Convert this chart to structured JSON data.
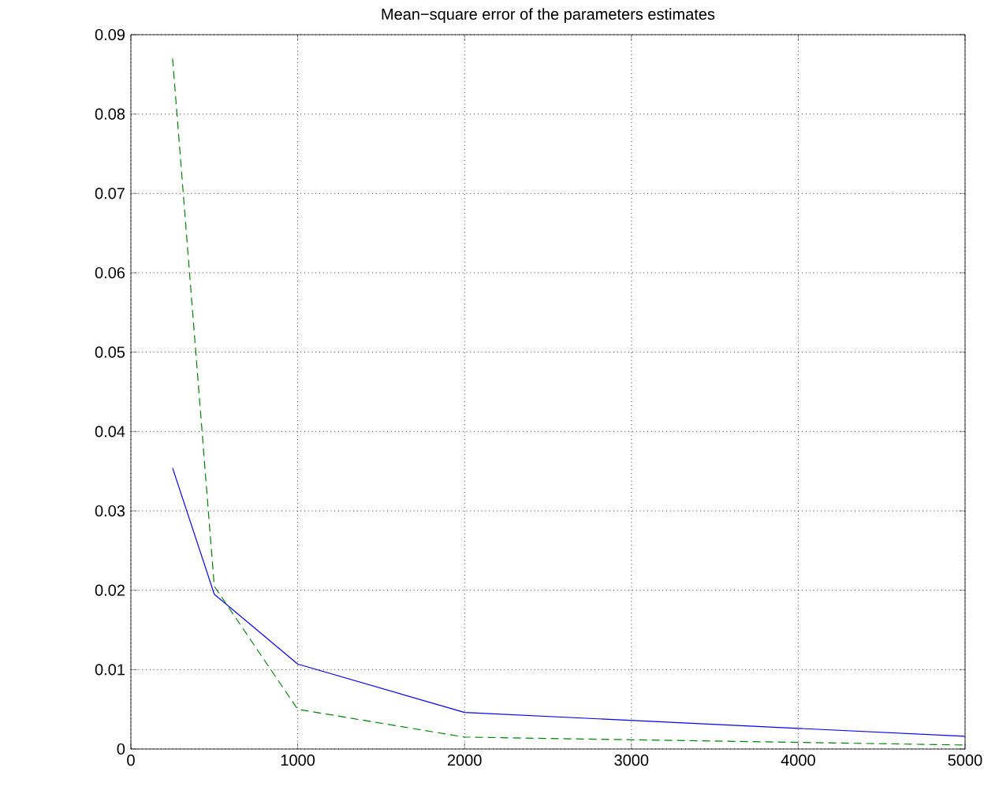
{
  "chart_data": {
    "type": "line",
    "title": "Mean−square error of the parameters estimates",
    "xlim": [
      0,
      5000
    ],
    "ylim": [
      0,
      0.09
    ],
    "xticks": [
      0,
      1000,
      2000,
      3000,
      4000,
      5000
    ],
    "yticks": [
      0,
      0.01,
      0.02,
      0.03,
      0.04,
      0.05,
      0.06,
      0.07,
      0.08,
      0.09
    ],
    "grid": true,
    "series": [
      {
        "color": "#0000ff",
        "line_style": "solid",
        "x": [
          250,
          500,
          1000,
          2000,
          5000
        ],
        "values": [
          0.0354,
          0.0195,
          0.0107,
          0.0046,
          0.0016
        ]
      },
      {
        "color": "#008000",
        "line_style": "dashed",
        "x": [
          250,
          500,
          1000,
          2000,
          5000
        ],
        "values": [
          0.087,
          0.0205,
          0.005,
          0.0015,
          0.0005
        ]
      }
    ]
  }
}
